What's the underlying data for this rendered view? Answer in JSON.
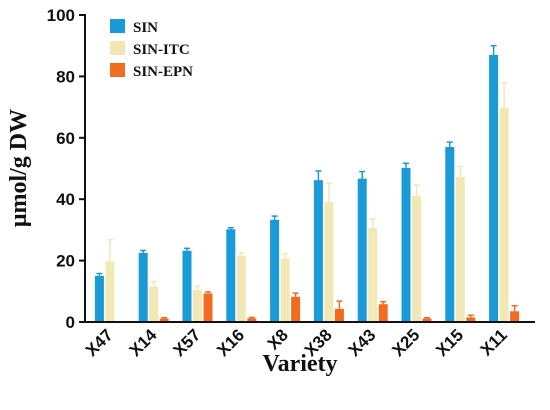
{
  "chart_data": {
    "type": "bar",
    "title": "",
    "xlabel": "Variety",
    "ylabel": "μmol/g DW",
    "categories": [
      "X47",
      "X14",
      "X57",
      "X16",
      "X8",
      "X38",
      "X43",
      "X25",
      "X15",
      "X11"
    ],
    "ylim": [
      0,
      100
    ],
    "yticks": [
      0,
      20,
      40,
      60,
      80,
      100
    ],
    "grid": false,
    "legend_position": "top-left",
    "series": [
      {
        "name": "SIN",
        "color": "#1a9ad6",
        "values": [
          15,
          22.5,
          23.2,
          30.2,
          33.3,
          46.2,
          46.7,
          50.2,
          57.0,
          87.0
        ],
        "errors": [
          0.8,
          0.8,
          0.8,
          0.5,
          1.2,
          3.0,
          2.3,
          1.5,
          1.6,
          3.0
        ]
      },
      {
        "name": "SIN-ITC",
        "color": "#f1e8b6",
        "values": [
          19.8,
          11.6,
          10.4,
          21.6,
          20.7,
          39.2,
          30.6,
          41.1,
          47.2,
          69.8
        ],
        "errors": [
          7.0,
          1.5,
          1.2,
          1.0,
          1.5,
          6.0,
          3.0,
          3.5,
          3.5,
          8.0
        ]
      },
      {
        "name": "SIN-EPN",
        "color": "#f26b21",
        "values": [
          0,
          1.1,
          9.3,
          1.2,
          8.2,
          4.3,
          5.8,
          1.1,
          1.5,
          3.5
        ],
        "errors": [
          0,
          0.3,
          0.5,
          0.3,
          1.2,
          2.5,
          0.8,
          0.3,
          0.7,
          1.8
        ]
      }
    ]
  }
}
